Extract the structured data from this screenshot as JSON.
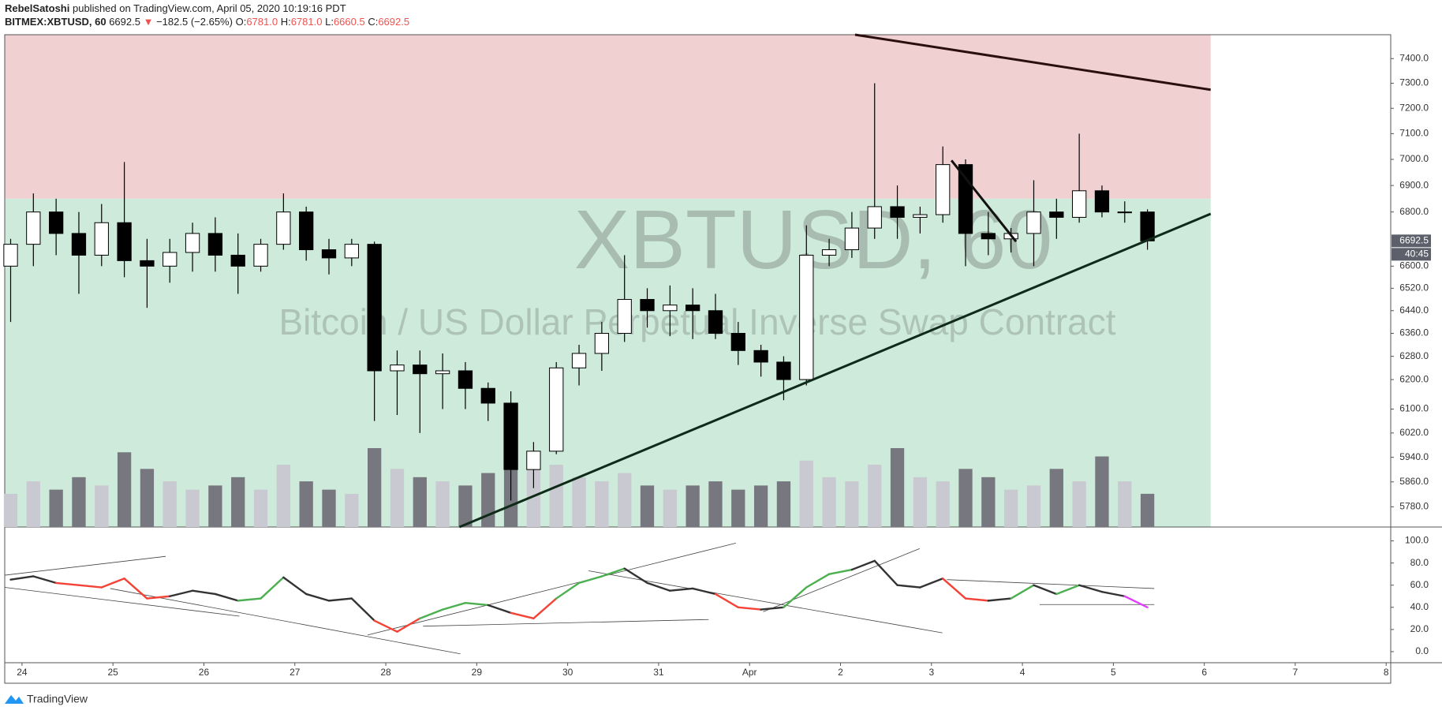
{
  "header": {
    "publisher": "RebelSatoshi",
    "published": "published on TradingView.com, April 05, 2020 10:19:16 PDT",
    "symbol": "BITMEX:XBTUSD, 60",
    "price": "6692.5",
    "arrow": "▼",
    "change": "−182.5 (−2.65%)",
    "o_label": "O:",
    "o": "6781.0",
    "h_label": "H:",
    "h": "6781.0",
    "l_label": "L:",
    "l": "6660.5",
    "c_label": "C:",
    "c": "6692.5"
  },
  "footer": {
    "brand": "TradingView"
  },
  "chart_data": {
    "type": "candlestick",
    "watermark": "XBTUSD, 60",
    "watermark_subtitle": "Bitcoin / US Dollar Perpetual Inverse Swap Contract",
    "x": [
      -0.125,
      0.125,
      0.375,
      0.625,
      0.875,
      1.125,
      1.375,
      1.625,
      1.875,
      2.125,
      2.375,
      2.625,
      2.875,
      3.125,
      3.375,
      3.625,
      3.875,
      4.125,
      4.375,
      4.625,
      4.875,
      5.125,
      5.375,
      5.625,
      5.875,
      6.125,
      6.375,
      6.625,
      6.875,
      7.125,
      7.375,
      7.625,
      7.875,
      8.125,
      8.375,
      8.625,
      8.875,
      9.125,
      9.375,
      9.625,
      9.875,
      10.125,
      10.375,
      10.625,
      10.875,
      11.125,
      11.375,
      11.625,
      11.875,
      12.125,
      12.375
    ],
    "open": [
      6600,
      6680,
      6800,
      6720,
      6640,
      6760,
      6620,
      6600,
      6650,
      6720,
      6640,
      6600,
      6680,
      6800,
      6660,
      6630,
      6680,
      6230,
      6250,
      6220,
      6230,
      6170,
      6120,
      5900,
      5960,
      6240,
      6290,
      6360,
      6480,
      6440,
      6460,
      6440,
      6360,
      6300,
      6260,
      6200,
      6640,
      6660,
      6740,
      6820,
      6780,
      6790,
      6980,
      6720,
      6700,
      6720,
      6800,
      6780,
      6880,
      6800,
      6800
    ],
    "high": [
      6700,
      6870,
      6850,
      6800,
      6830,
      6990,
      6700,
      6700,
      6760,
      6780,
      6720,
      6700,
      6870,
      6820,
      6700,
      6700,
      6690,
      6300,
      6300,
      6290,
      6260,
      6190,
      6160,
      5990,
      6260,
      6320,
      6400,
      6640,
      6520,
      6530,
      6520,
      6500,
      6400,
      6320,
      6280,
      6750,
      6700,
      6800,
      7300,
      6900,
      6820,
      7050,
      7000,
      6800,
      6740,
      6920,
      6850,
      7100,
      6900,
      6840,
      6810
    ],
    "low": [
      6400,
      6600,
      6640,
      6500,
      6600,
      6560,
      6450,
      6540,
      6580,
      6580,
      6500,
      6580,
      6660,
      6620,
      6570,
      6600,
      6060,
      6080,
      6020,
      6100,
      6100,
      6060,
      5800,
      5840,
      5950,
      6180,
      6230,
      6330,
      6380,
      6350,
      6340,
      6340,
      6250,
      6210,
      6130,
      6180,
      6600,
      6630,
      6700,
      6700,
      6720,
      6760,
      6600,
      6640,
      6650,
      6600,
      6700,
      6760,
      6780,
      6760,
      6660
    ],
    "close": [
      6680,
      6800,
      6720,
      6640,
      6760,
      6620,
      6600,
      6650,
      6720,
      6640,
      6600,
      6680,
      6800,
      6660,
      6630,
      6680,
      6230,
      6250,
      6220,
      6230,
      6170,
      6120,
      5900,
      5960,
      6240,
      6290,
      6360,
      6480,
      6440,
      6460,
      6440,
      6360,
      6300,
      6260,
      6200,
      6640,
      6660,
      6740,
      6820,
      6780,
      6790,
      6980,
      6720,
      6700,
      6720,
      6800,
      6780,
      6880,
      6800,
      6800,
      6692.5
    ],
    "volume": [
      40,
      55,
      45,
      60,
      50,
      90,
      70,
      55,
      45,
      50,
      60,
      45,
      75,
      55,
      45,
      40,
      95,
      70,
      60,
      55,
      50,
      65,
      85,
      70,
      75,
      60,
      55,
      65,
      50,
      45,
      50,
      55,
      45,
      50,
      55,
      80,
      60,
      55,
      75,
      95,
      60,
      55,
      70,
      60,
      45,
      50,
      70,
      55,
      85,
      55,
      40
    ],
    "countdown": "40:45",
    "log_scale": true,
    "xlim": [
      -0.19,
      15.05
    ],
    "xticks": [
      {
        "value": 0,
        "label": "24"
      },
      {
        "value": 1,
        "label": "25"
      },
      {
        "value": 2,
        "label": "26"
      },
      {
        "value": 3,
        "label": "27"
      },
      {
        "value": 4,
        "label": "28"
      },
      {
        "value": 5,
        "label": "29"
      },
      {
        "value": 6,
        "label": "30"
      },
      {
        "value": 7,
        "label": "31"
      },
      {
        "value": 8,
        "label": "Apr"
      },
      {
        "value": 9,
        "label": "2"
      },
      {
        "value": 10,
        "label": "3"
      },
      {
        "value": 11,
        "label": "4"
      },
      {
        "value": 12,
        "label": "5"
      },
      {
        "value": 13,
        "label": "6"
      },
      {
        "value": 14,
        "label": "7"
      },
      {
        "value": 15,
        "label": "8"
      }
    ],
    "ylim": [
      5716,
      7498
    ],
    "yticks": [
      {
        "value": 7400,
        "label": "7400.0"
      },
      {
        "value": 7300,
        "label": "7300.0"
      },
      {
        "value": 7200,
        "label": "7200.0"
      },
      {
        "value": 7100,
        "label": "7100.0"
      },
      {
        "value": 7000,
        "label": "7000.0"
      },
      {
        "value": 6900,
        "label": "6900.0"
      },
      {
        "value": 6800,
        "label": "6800.0"
      },
      {
        "value": 6600,
        "label": "6600.0"
      },
      {
        "value": 6520,
        "label": "6520.0"
      },
      {
        "value": 6440,
        "label": "6440.0"
      },
      {
        "value": 6360,
        "label": "6360.0"
      },
      {
        "value": 6280,
        "label": "6280.0"
      },
      {
        "value": 6200,
        "label": "6200.0"
      },
      {
        "value": 6100,
        "label": "6100.0"
      },
      {
        "value": 6020,
        "label": "6020.0"
      },
      {
        "value": 5940,
        "label": "5940.0"
      },
      {
        "value": 5860,
        "label": "5860.0"
      },
      {
        "value": 5780,
        "label": "5780.0"
      }
    ],
    "zones": [
      {
        "x0": -0.19,
        "x1": 13.07,
        "y0": 6850,
        "y1": 7498,
        "color": "#f0d0d1"
      },
      {
        "x0": -0.19,
        "x1": 13.07,
        "y0": 5716,
        "y1": 6850,
        "color": "#cdeadb"
      }
    ],
    "trendlines": [
      {
        "x": [
          9.16,
          13.07
        ],
        "y": [
          7498,
          7274
        ],
        "color": "#2a0f0f"
      },
      {
        "x": [
          4.81,
          13.07
        ],
        "y": [
          5716,
          6793
        ],
        "color": "#0f2a18"
      },
      {
        "x": [
          10.22,
          10.93
        ],
        "y": [
          6996,
          6690
        ],
        "color": "#111111"
      }
    ],
    "y2lim": [
      -10,
      112.5
    ],
    "y2ticks": [
      {
        "value": 100,
        "label": "100.0"
      },
      {
        "value": 80,
        "label": "80.0"
      },
      {
        "value": 60,
        "label": "60.0"
      },
      {
        "value": 40,
        "label": "40.0"
      },
      {
        "value": 20,
        "label": "20.0"
      },
      {
        "value": 0,
        "label": "0.0"
      }
    ],
    "osc_values": [
      65,
      68,
      62,
      60,
      58,
      66,
      48,
      50,
      55,
      52,
      46,
      48,
      67,
      52,
      46,
      48,
      28,
      18,
      30,
      38,
      44,
      42,
      35,
      30,
      48,
      62,
      68,
      75,
      62,
      55,
      57,
      52,
      40,
      38,
      40,
      58,
      70,
      74,
      82,
      60,
      58,
      66,
      48,
      46,
      48,
      60,
      52,
      60,
      54,
      50,
      40
    ],
    "osc_colors": [
      "#333333",
      "#333333",
      "#f44336",
      "#f44336",
      "#f44336",
      "#f44336",
      "#f44336",
      "#333333",
      "#333333",
      "#333333",
      "#4caf50",
      "#4caf50",
      "#333333",
      "#333333",
      "#333333",
      "#333333",
      "#f44336",
      "#f44336",
      "#4caf50",
      "#4caf50",
      "#4caf50",
      "#333333",
      "#f44336",
      "#f44336",
      "#4caf50",
      "#4caf50",
      "#4caf50",
      "#333333",
      "#333333",
      "#333333",
      "#333333",
      "#f44336",
      "#f44336",
      "#333333",
      "#4caf50",
      "#4caf50",
      "#4caf50",
      "#333333",
      "#333333",
      "#333333",
      "#333333",
      "#f44336",
      "#f44336",
      "#333333",
      "#4caf50",
      "#333333",
      "#4caf50",
      "#333333",
      "#333333",
      "#e040fb",
      "#e040fb"
    ],
    "osc_lines": [
      {
        "x": [
          -0.19,
          2.39
        ],
        "y": [
          58,
          32
        ]
      },
      {
        "x": [
          -0.19,
          1.58
        ],
        "y": [
          69,
          86
        ]
      },
      {
        "x": [
          0.97,
          4.82
        ],
        "y": [
          57,
          -2
        ]
      },
      {
        "x": [
          3.8,
          7.85
        ],
        "y": [
          15,
          98
        ]
      },
      {
        "x": [
          4.41,
          7.55
        ],
        "y": [
          23,
          29
        ]
      },
      {
        "x": [
          6.23,
          10.12
        ],
        "y": [
          73,
          17
        ]
      },
      {
        "x": [
          8.15,
          9.87
        ],
        "y": [
          36,
          93
        ]
      },
      {
        "x": [
          10.17,
          12.45
        ],
        "y": [
          65,
          57
        ]
      },
      {
        "x": [
          11.19,
          12.45
        ],
        "y": [
          42.5,
          42.5
        ]
      }
    ]
  }
}
